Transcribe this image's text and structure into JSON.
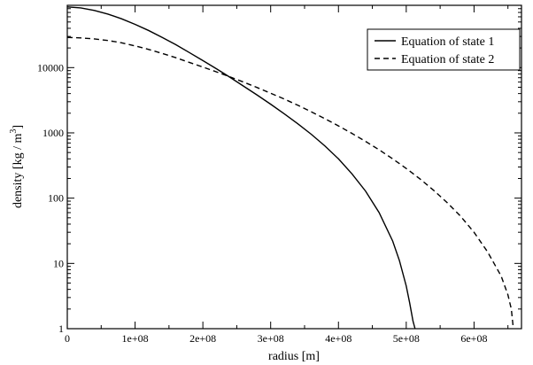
{
  "chart_data": {
    "type": "line",
    "title": "",
    "xlabel": "radius [m]",
    "ylabel": "density [kg / m",
    "ylabel_superscript": "3",
    "ylabel_suffix": "]",
    "xlim": [
      0,
      670000000
    ],
    "ylim": [
      1,
      90000
    ],
    "yscale": "log",
    "grid": false,
    "legend_position": "top-right",
    "xticks": [
      {
        "value": 0,
        "label": "0"
      },
      {
        "value": 100000000,
        "label": "1e+08"
      },
      {
        "value": 200000000,
        "label": "2e+08"
      },
      {
        "value": 300000000,
        "label": "3e+08"
      },
      {
        "value": 400000000,
        "label": "4e+08"
      },
      {
        "value": 500000000,
        "label": "5e+08"
      },
      {
        "value": 600000000,
        "label": "6e+08"
      }
    ],
    "yticks": [
      {
        "value": 1,
        "label": "1"
      },
      {
        "value": 10,
        "label": "10"
      },
      {
        "value": 100,
        "label": "100"
      },
      {
        "value": 1000,
        "label": "1000"
      },
      {
        "value": 10000,
        "label": "10000"
      }
    ],
    "series": [
      {
        "name": "Equation of state 1",
        "style": "solid",
        "color": "#000000",
        "x": [
          0,
          20000000,
          40000000,
          60000000,
          80000000,
          100000000,
          120000000,
          140000000,
          160000000,
          180000000,
          200000000,
          220000000,
          240000000,
          260000000,
          280000000,
          300000000,
          320000000,
          340000000,
          360000000,
          380000000,
          400000000,
          420000000,
          440000000,
          460000000,
          480000000,
          490000000,
          500000000,
          505000000,
          510000000,
          513000000
        ],
        "y": [
          85000,
          82000,
          75000,
          66000,
          56000,
          46000,
          37000,
          29000,
          22500,
          17000,
          12800,
          9600,
          7100,
          5200,
          3800,
          2750,
          1960,
          1380,
          950,
          630,
          400,
          235,
          128,
          60,
          22,
          11,
          4.5,
          2.5,
          1.3,
          1
        ]
      },
      {
        "name": "Equation of state 2",
        "style": "dashed",
        "color": "#000000",
        "x": [
          0,
          20000000,
          40000000,
          60000000,
          80000000,
          100000000,
          120000000,
          140000000,
          160000000,
          180000000,
          200000000,
          220000000,
          240000000,
          260000000,
          280000000,
          300000000,
          320000000,
          340000000,
          360000000,
          380000000,
          400000000,
          420000000,
          440000000,
          460000000,
          480000000,
          500000000,
          520000000,
          540000000,
          560000000,
          580000000,
          600000000,
          620000000,
          640000000,
          650000000,
          655000000,
          658000000
        ],
        "y": [
          29000,
          28500,
          27500,
          26000,
          24000,
          21500,
          19000,
          16500,
          14200,
          12000,
          10200,
          8600,
          7200,
          6000,
          4950,
          4050,
          3300,
          2650,
          2100,
          1650,
          1280,
          980,
          740,
          550,
          400,
          285,
          198,
          133,
          86,
          53,
          30,
          15,
          6.4,
          3.3,
          2,
          1
        ]
      }
    ]
  }
}
